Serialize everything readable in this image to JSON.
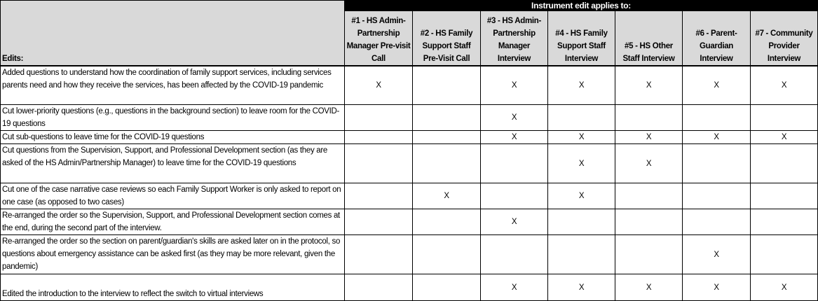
{
  "header": {
    "edits_label": "Edits:",
    "group_label": "Instrument edit applies to:",
    "columns": [
      "#1 - HS Admin-Partnership Manager Pre-visit Call",
      "#2 - HS Family Support Staff Pre-Visit Call",
      "#3 - HS Admin-Partnership Manager Interview",
      "#4 - HS Family Support Staff Interview",
      "#5 - HS Other Staff Interview",
      "#6 - Parent-Guardian Interview",
      "#7 - Community Provider Interview"
    ]
  },
  "rows": [
    {
      "edit": "Added questions to understand how the coordination of family support services, including services parents need and how they receive the services, has been affected by the COVID-19 pandemic",
      "marks": [
        "X",
        "",
        "X",
        "X",
        "X",
        "X",
        "X"
      ]
    },
    {
      "edit": "Cut lower-priority questions (e.g., questions in the background section) to leave room for the COVID-19 questions",
      "marks": [
        "",
        "",
        "X",
        "",
        "",
        "",
        ""
      ]
    },
    {
      "edit": "Cut sub-questions to leave time for the COVID-19 questions",
      "marks": [
        "",
        "",
        "X",
        "X",
        "X",
        "X",
        "X"
      ]
    },
    {
      "edit": "Cut questions from the Supervision, Support, and Professional Development section (as they are asked of the HS Admin/Partnership Manager) to leave time for the COVID-19 questions",
      "marks": [
        "",
        "",
        "",
        "X",
        "X",
        "",
        ""
      ]
    },
    {
      "edit": "Cut one of the case narrative case reviews so each Family Support Worker is only asked to report on one case (as opposed to two cases)",
      "marks": [
        "",
        "X",
        "",
        "X",
        "",
        "",
        ""
      ]
    },
    {
      "edit": "Re-arranged the order so the Supervision, Support, and Professional Development section comes at the end, during the second part of the interview.",
      "marks": [
        "",
        "",
        "X",
        "",
        "",
        "",
        ""
      ]
    },
    {
      "edit": "Re-arranged the order so the section on parent/guardian's skills are asked later on in the protocol, so questions about emergency assistance can be asked first (as they may be more relevant, given the pandemic)",
      "marks": [
        "",
        "",
        "",
        "",
        "",
        "X",
        ""
      ]
    },
    {
      "edit": "Edited the introduction to the interview to reflect the switch to virtual interviews",
      "marks": [
        "",
        "",
        "X",
        "X",
        "X",
        "X",
        "X"
      ]
    }
  ]
}
